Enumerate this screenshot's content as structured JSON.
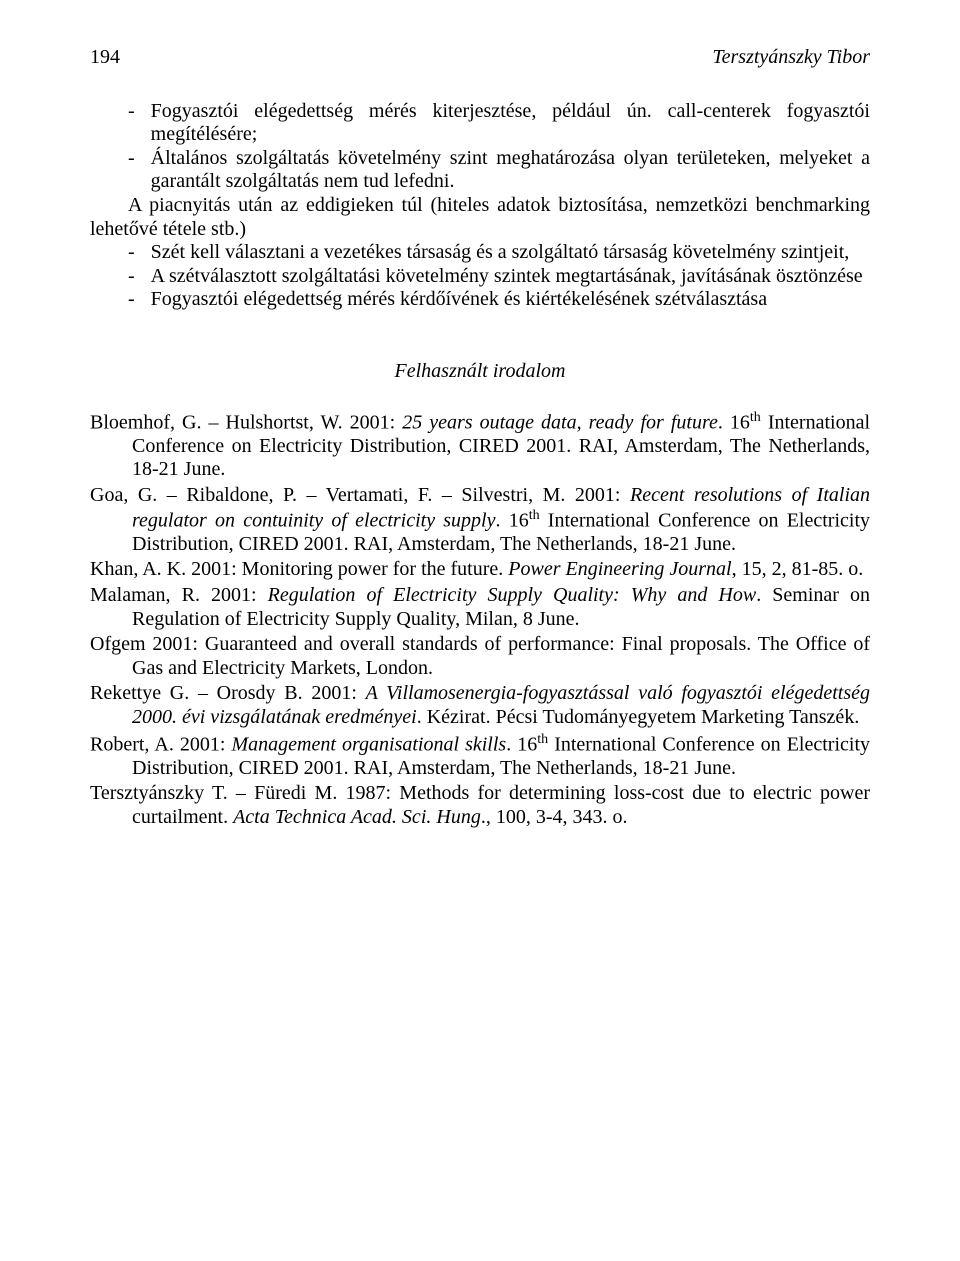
{
  "header": {
    "page_no": "194",
    "running_head": "Tersztyánszky Tibor"
  },
  "bullets1": [
    "Fogyasztói elégedettség mérés kiterjesztése, például ún. call-centerek fogyasztói megítélésére;",
    "Általános szolgáltatás követelmény szint meghatározása olyan területeken, melyeket a garantált szolgáltatás nem tud lefedni."
  ],
  "mid_para": "A piacnyitás után az eddigieken túl (hiteles adatok biztosítása, nemzetközi benchmarking lehetővé tétele stb.)",
  "bullets2": [
    "Szét kell választani a vezetékes társaság és a szolgáltató társaság követelmény szintjeit,",
    "A szétválasztott szolgáltatási követelmény szintek megtartásának, javításának ösztönzése",
    "Fogyasztói elégedettség mérés kérdőívének és kiértékelésének szétválasztása"
  ],
  "refs_title": "Felhasznált irodalom",
  "refs": {
    "r1": {
      "authors": "Bloemhof, G. – Hulshortst, W. 2001: ",
      "title_ital": "25 years outage data, ready for future",
      "after": ". 16",
      "sup": "th",
      "rest": " International Conference on Electricity Distribution, CIRED 2001. RAI, Amsterdam, The Netherlands, 18-21 June."
    },
    "r2": {
      "authors": "Goa, G. – Ribaldone, P. – Vertamati, F. – Silvestri, M. 2001: ",
      "title_ital": "Recent resolutions of Italian regulator on contuinity of electricity supply",
      "after": ". 16",
      "sup": "th",
      "rest": " International Conference on Electricity Distribution, CIRED 2001. RAI, Amsterdam, The Netherlands, 18-21 June."
    },
    "r3": {
      "authors": "Khan, A. K. 2001: Monitoring power for the future. ",
      "title_ital": "Power Engineering Journal",
      "after": ", 15, 2, 81-85. o.",
      "sup": "",
      "rest": ""
    },
    "r4": {
      "authors": "Malaman, R. 2001: ",
      "title_ital": "Regulation of Electricity Supply Quality: Why and How",
      "after": ". Seminar on Regulation of Electricity Supply Quality, Milan, 8 June.",
      "sup": "",
      "rest": ""
    },
    "r5": {
      "authors": "Ofgem 2001: Guaranteed and overall standards of performance: Final proposals. The Office of Gas and Electricity Markets, London.",
      "title_ital": "",
      "after": "",
      "sup": "",
      "rest": ""
    },
    "r6": {
      "authors": "Rekettye G. – Orosdy B. 2001: ",
      "title_ital": "A Villamosenergia-fogyasztással való fogyasztói elégedettség 2000. évi vizsgálatának eredményei",
      "after": ". Kézirat. Pécsi Tudományegyetem Marketing Tanszék.",
      "sup": "",
      "rest": ""
    },
    "r7": {
      "authors": "Robert, A. 2001: ",
      "title_ital": "Management organisational skills",
      "after": ". 16",
      "sup": "th",
      "rest": " International Conference on Electricity Distribution, CIRED 2001. RAI, Amsterdam, The Netherlands, 18-21 June."
    },
    "r8": {
      "authors": "Tersztyánszky T. – Füredi M. 1987: Methods for determining loss-cost due to electric power curtailment. ",
      "title_ital": "Acta Technica Acad. Sci. Hung",
      "after": "., 100, 3-4, 343. o.",
      "sup": "",
      "rest": ""
    }
  }
}
